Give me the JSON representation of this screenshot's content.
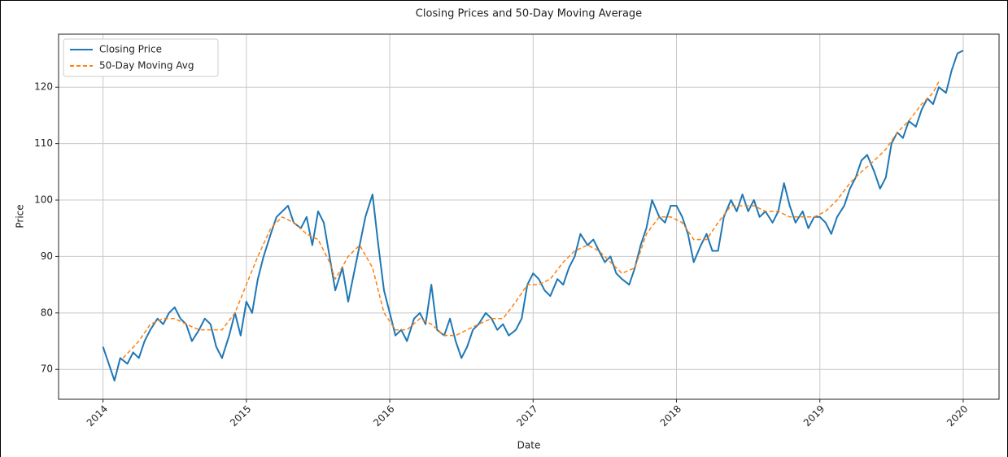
{
  "chart_data": {
    "type": "line",
    "title": "Closing Prices and 50-Day Moving Average",
    "xlabel": "Date",
    "ylabel": "Price",
    "xlim": [
      2013.69,
      2020.25
    ],
    "xticks": [
      2014,
      2015,
      2016,
      2017,
      2018,
      2019,
      2020
    ],
    "ylim": [
      64.7,
      129.4
    ],
    "yticks": [
      70,
      80,
      90,
      100,
      110,
      120
    ],
    "grid": true,
    "legend": "upper left",
    "series": [
      {
        "name": "Closing Price",
        "color": "#1f77b4",
        "linestyle": "solid",
        "x": [
          2014.0,
          2014.04,
          2014.08,
          2014.12,
          2014.17,
          2014.21,
          2014.25,
          2014.29,
          2014.33,
          2014.38,
          2014.42,
          2014.46,
          2014.5,
          2014.54,
          2014.58,
          2014.62,
          2014.67,
          2014.71,
          2014.75,
          2014.79,
          2014.83,
          2014.88,
          2014.92,
          2014.96,
          2015.0,
          2015.04,
          2015.08,
          2015.12,
          2015.17,
          2015.21,
          2015.25,
          2015.29,
          2015.33,
          2015.38,
          2015.42,
          2015.46,
          2015.5,
          2015.54,
          2015.58,
          2015.62,
          2015.67,
          2015.71,
          2015.75,
          2015.79,
          2015.83,
          2015.88,
          2015.92,
          2015.96,
          2016.0,
          2016.04,
          2016.08,
          2016.12,
          2016.17,
          2016.21,
          2016.25,
          2016.29,
          2016.33,
          2016.38,
          2016.42,
          2016.46,
          2016.5,
          2016.54,
          2016.58,
          2016.62,
          2016.67,
          2016.71,
          2016.75,
          2016.79,
          2016.83,
          2016.88,
          2016.92,
          2016.96,
          2017.0,
          2017.04,
          2017.08,
          2017.12,
          2017.17,
          2017.21,
          2017.25,
          2017.29,
          2017.33,
          2017.38,
          2017.42,
          2017.46,
          2017.5,
          2017.54,
          2017.58,
          2017.62,
          2017.67,
          2017.71,
          2017.75,
          2017.79,
          2017.83,
          2017.88,
          2017.92,
          2017.96,
          2018.0,
          2018.04,
          2018.08,
          2018.12,
          2018.17,
          2018.21,
          2018.25,
          2018.29,
          2018.33,
          2018.38,
          2018.42,
          2018.46,
          2018.5,
          2018.54,
          2018.58,
          2018.62,
          2018.67,
          2018.71,
          2018.75,
          2018.79,
          2018.83,
          2018.88,
          2018.92,
          2018.96,
          2019.0,
          2019.04,
          2019.08,
          2019.12,
          2019.17,
          2019.21,
          2019.25,
          2019.29,
          2019.33,
          2019.38,
          2019.42,
          2019.46,
          2019.5,
          2019.54,
          2019.58,
          2019.62,
          2019.67,
          2019.71,
          2019.75,
          2019.79,
          2019.83,
          2019.88,
          2019.92,
          2019.96,
          2020.0
        ],
        "values": [
          74,
          71,
          68,
          72,
          71,
          73,
          72,
          75,
          77,
          79,
          78,
          80,
          81,
          79,
          78,
          75,
          77,
          79,
          78,
          74,
          72,
          76,
          80,
          76,
          82,
          80,
          86,
          90,
          94,
          97,
          98,
          99,
          96,
          95,
          97,
          92,
          98,
          96,
          90,
          84,
          88,
          82,
          87,
          92,
          97,
          101,
          92,
          84,
          80,
          76,
          77,
          75,
          79,
          80,
          78,
          85,
          77,
          76,
          79,
          75,
          72,
          74,
          77,
          78,
          80,
          79,
          77,
          78,
          76,
          77,
          79,
          85,
          87,
          86,
          84,
          83,
          86,
          85,
          88,
          90,
          94,
          92,
          93,
          91,
          89,
          90,
          87,
          86,
          85,
          88,
          92,
          95,
          100,
          97,
          96,
          99,
          99,
          97,
          94,
          89,
          92,
          94,
          91,
          91,
          97,
          100,
          98,
          101,
          98,
          100,
          97,
          98,
          96,
          98,
          103,
          99,
          96,
          98,
          95,
          97,
          97,
          96,
          94,
          97,
          99,
          102,
          104,
          107,
          108,
          105,
          102,
          104,
          110,
          112,
          111,
          114,
          113,
          116,
          118,
          117,
          120,
          119,
          123,
          126,
          126.5
        ]
      },
      {
        "name": "50-Day Moving Avg",
        "color": "#ff7f0e",
        "linestyle": "dashed",
        "x": [
          2014.14,
          2014.25,
          2014.33,
          2014.42,
          2014.5,
          2014.58,
          2014.67,
          2014.75,
          2014.83,
          2014.92,
          2015.0,
          2015.08,
          2015.17,
          2015.25,
          2015.33,
          2015.42,
          2015.5,
          2015.58,
          2015.62,
          2015.71,
          2015.79,
          2015.88,
          2015.96,
          2016.04,
          2016.12,
          2016.21,
          2016.29,
          2016.38,
          2016.46,
          2016.54,
          2016.62,
          2016.71,
          2016.79,
          2016.88,
          2016.96,
          2017.04,
          2017.12,
          2017.21,
          2017.29,
          2017.38,
          2017.46,
          2017.54,
          2017.62,
          2017.71,
          2017.79,
          2017.88,
          2017.96,
          2018.04,
          2018.12,
          2018.21,
          2018.29,
          2018.38,
          2018.46,
          2018.54,
          2018.62,
          2018.71,
          2018.79,
          2018.88,
          2018.96,
          2019.04,
          2019.12,
          2019.21,
          2019.29,
          2019.38,
          2019.46,
          2019.54,
          2019.62,
          2019.71,
          2019.79,
          2019.83
        ],
        "values": [
          72,
          75,
          78,
          79,
          79,
          78,
          77,
          77,
          77,
          80,
          85,
          90,
          95,
          97,
          96,
          94,
          93,
          89,
          86,
          90,
          92,
          88,
          80,
          77,
          77,
          79,
          78,
          76,
          76,
          77,
          78,
          79,
          79,
          82,
          85,
          85,
          86,
          89,
          91,
          92,
          91,
          89,
          87,
          88,
          94,
          97,
          97,
          96,
          93,
          93,
          96,
          99,
          99,
          99,
          98,
          98,
          97,
          97,
          97,
          98,
          100,
          103,
          105,
          107,
          109,
          112,
          114,
          117,
          119,
          121
        ]
      }
    ]
  }
}
